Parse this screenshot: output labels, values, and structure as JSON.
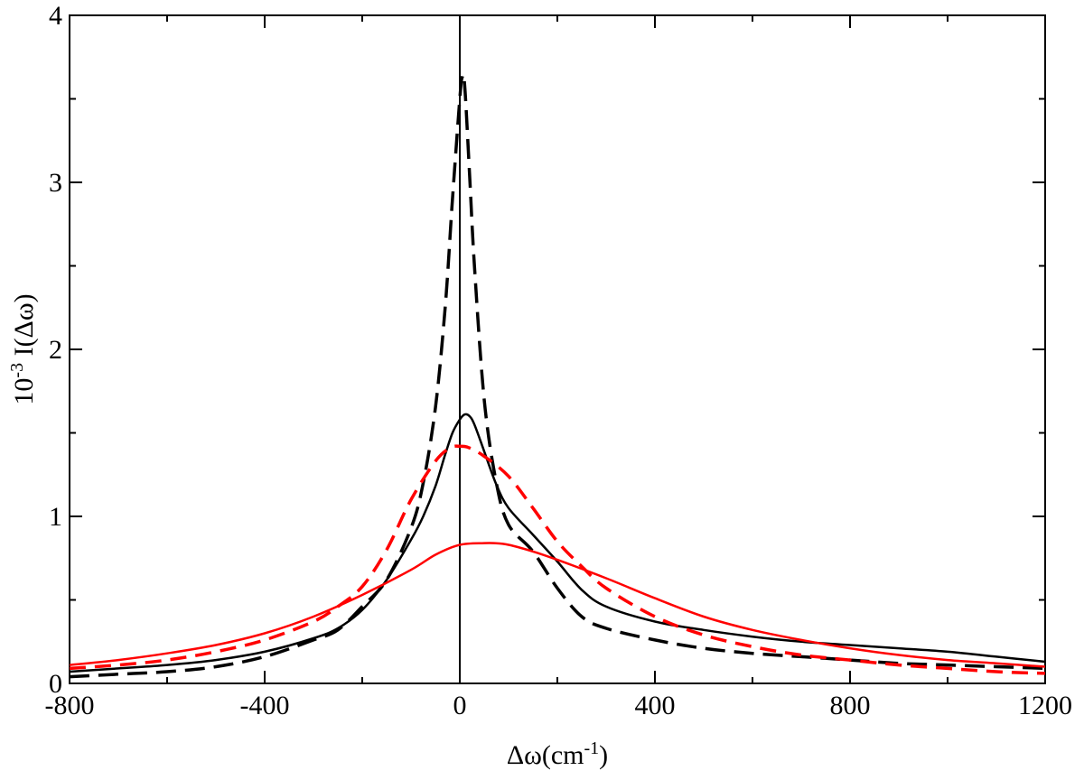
{
  "chart_data": {
    "type": "line",
    "xlabel": {
      "main": "Δω(cm",
      "sup": "-1",
      "end": ")"
    },
    "ylabel": {
      "pre": "10",
      "sup": "-3",
      "main": " I(Δω)"
    },
    "xlim": [
      -800,
      1200
    ],
    "ylim": [
      0,
      4
    ],
    "xticks": [
      -800,
      -400,
      0,
      400,
      800,
      1200
    ],
    "xtick_labels": [
      "-800",
      "-400",
      "0",
      "400",
      "800",
      "1200"
    ],
    "yticks": [
      0,
      1,
      2,
      3,
      4
    ],
    "ytick_labels": [
      "0",
      "1",
      "2",
      "3",
      "4"
    ],
    "grid": false,
    "vertical_line_x": 0,
    "series": [
      {
        "color": "#000000",
        "dash": "solid",
        "x": [
          -800,
          -700,
          -600,
          -500,
          -400,
          -300,
          -250,
          -200,
          -150,
          -100,
          -75,
          -50,
          -30,
          -15,
          0,
          10,
          20,
          30,
          50,
          75,
          100,
          150,
          200,
          250,
          300,
          400,
          500,
          600,
          700,
          800,
          900,
          1000,
          1100,
          1200
        ],
        "y": [
          0.07,
          0.09,
          0.11,
          0.14,
          0.19,
          0.27,
          0.33,
          0.44,
          0.62,
          0.86,
          1.0,
          1.18,
          1.37,
          1.5,
          1.58,
          1.61,
          1.6,
          1.55,
          1.39,
          1.19,
          1.05,
          0.89,
          0.73,
          0.56,
          0.46,
          0.37,
          0.32,
          0.28,
          0.25,
          0.23,
          0.21,
          0.19,
          0.16,
          0.13
        ]
      },
      {
        "color": "#000000",
        "dash": "long",
        "x": [
          -800,
          -700,
          -600,
          -500,
          -400,
          -300,
          -250,
          -200,
          -150,
          -100,
          -75,
          -50,
          -30,
          -15,
          0,
          5,
          10,
          20,
          30,
          50,
          75,
          100,
          150,
          200,
          250,
          300,
          400,
          500,
          600,
          700,
          800,
          900,
          1000,
          1100,
          1200
        ],
        "y": [
          0.04,
          0.055,
          0.07,
          0.1,
          0.16,
          0.26,
          0.32,
          0.46,
          0.62,
          0.93,
          1.2,
          1.65,
          2.25,
          2.9,
          3.5,
          3.63,
          3.58,
          3.05,
          2.5,
          1.7,
          1.2,
          0.95,
          0.79,
          0.57,
          0.4,
          0.33,
          0.26,
          0.21,
          0.18,
          0.16,
          0.14,
          0.12,
          0.11,
          0.1,
          0.09
        ]
      },
      {
        "color": "#ff0000",
        "dash": "solid",
        "x": [
          -800,
          -700,
          -600,
          -500,
          -400,
          -300,
          -200,
          -100,
          -50,
          0,
          50,
          70,
          100,
          150,
          200,
          300,
          400,
          500,
          600,
          700,
          800,
          900,
          1000,
          1100,
          1200
        ],
        "y": [
          0.11,
          0.14,
          0.18,
          0.23,
          0.3,
          0.4,
          0.53,
          0.68,
          0.77,
          0.83,
          0.84,
          0.84,
          0.83,
          0.79,
          0.74,
          0.63,
          0.51,
          0.4,
          0.32,
          0.26,
          0.21,
          0.17,
          0.14,
          0.12,
          0.1
        ]
      },
      {
        "color": "#ff0000",
        "dash": "dashed",
        "x": [
          -800,
          -700,
          -600,
          -500,
          -400,
          -300,
          -250,
          -200,
          -150,
          -100,
          -50,
          -20,
          0,
          20,
          50,
          100,
          150,
          200,
          250,
          300,
          400,
          500,
          600,
          700,
          800,
          900,
          1000,
          1100,
          1200
        ],
        "y": [
          0.09,
          0.11,
          0.14,
          0.19,
          0.26,
          0.37,
          0.46,
          0.58,
          0.8,
          1.1,
          1.33,
          1.41,
          1.42,
          1.41,
          1.36,
          1.24,
          1.05,
          0.85,
          0.7,
          0.57,
          0.4,
          0.29,
          0.22,
          0.17,
          0.14,
          0.11,
          0.09,
          0.07,
          0.06
        ]
      }
    ]
  }
}
